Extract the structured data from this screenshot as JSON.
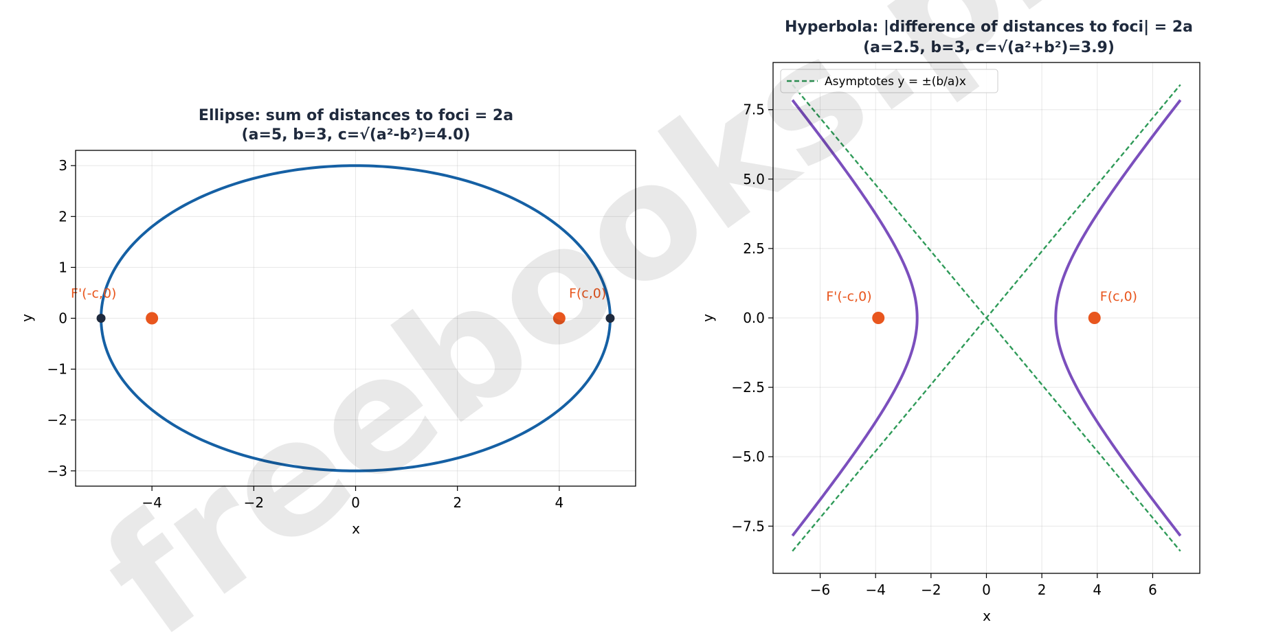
{
  "watermark": "freebooks.pk",
  "chart_data": [
    {
      "type": "line",
      "title": "Ellipse: sum of distances to foci = 2a",
      "subtitle": "(a=5, b=3, c=√(a²-b²)=4.0)",
      "xlabel": "x",
      "ylabel": "y",
      "xlim": [
        -5.5,
        5.5
      ],
      "ylim": [
        -3.3,
        3.3
      ],
      "xticks": [
        -4,
        -2,
        0,
        2,
        4
      ],
      "xtick_labels": [
        "−4",
        "−2",
        "0",
        "2",
        "4"
      ],
      "yticks": [
        -3,
        -2,
        -1,
        0,
        1,
        2,
        3
      ],
      "ytick_labels": [
        "−3",
        "−2",
        "−1",
        "0",
        "1",
        "2",
        "3"
      ],
      "grid": true,
      "curve": {
        "kind": "ellipse",
        "a": 5,
        "b": 3,
        "color": "#1560a4"
      },
      "foci": [
        {
          "x": -4,
          "y": 0,
          "label": "F'(-c,0)"
        },
        {
          "x": 4,
          "y": 0,
          "label": "F(c,0)"
        }
      ],
      "foci_color": "#e8561e",
      "vertices": [
        {
          "x": -5,
          "y": 0
        },
        {
          "x": 5,
          "y": 0
        }
      ],
      "vertex_color": "#1f2a3d"
    },
    {
      "type": "line",
      "title": "Hyperbola: |difference of distances to foci| = 2a",
      "subtitle": "(a=2.5, b=3, c=√(a²+b²)=3.9)",
      "xlabel": "x",
      "ylabel": "y",
      "xlim": [
        -7.7,
        7.7
      ],
      "ylim": [
        -9.2,
        9.2
      ],
      "xticks": [
        -6,
        -4,
        -2,
        0,
        2,
        4,
        6
      ],
      "xtick_labels": [
        "−6",
        "−4",
        "−2",
        "0",
        "2",
        "4",
        "6"
      ],
      "yticks": [
        -7.5,
        -5,
        -2.5,
        0,
        2.5,
        5,
        7.5
      ],
      "ytick_labels": [
        "−7.5",
        "−5.0",
        "−2.5",
        "0.0",
        "2.5",
        "5.0",
        "7.5"
      ],
      "grid": true,
      "curve": {
        "kind": "hyperbola",
        "a": 2.5,
        "b": 3,
        "x_max": 7,
        "color": "#7b4fbd"
      },
      "asymptotes": {
        "x_range": [
          -7,
          7
        ],
        "color": "#2e9a58",
        "legend": "Asymptotes y = ±(b/a)x"
      },
      "legend_position": "upper left",
      "foci": [
        {
          "x": -3.9,
          "y": 0,
          "label": "F'(-c,0)"
        },
        {
          "x": 3.9,
          "y": 0,
          "label": "F(c,0)"
        }
      ],
      "foci_color": "#e8561e"
    }
  ]
}
